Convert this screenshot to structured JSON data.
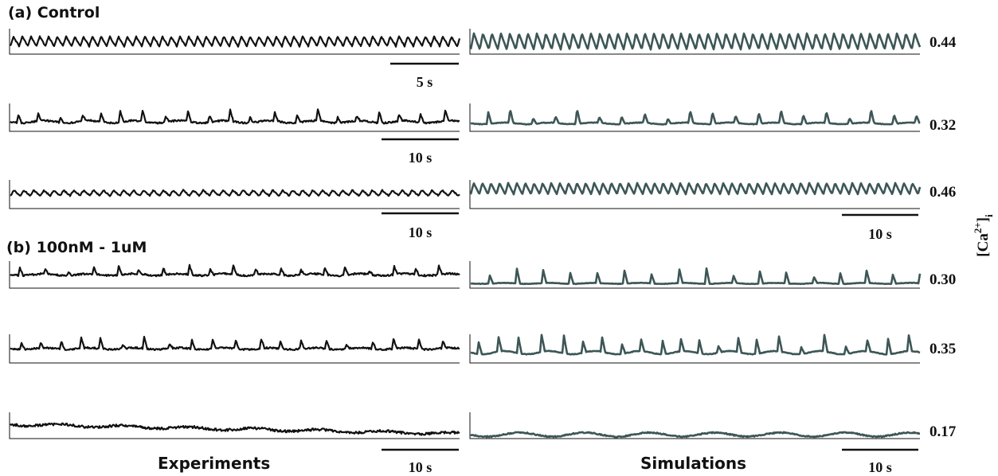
{
  "sections": {
    "a": "(a) Control",
    "b": "(b) 100nM - 1uM"
  },
  "columns": {
    "left": "Experiments",
    "right": "Simulations"
  },
  "y_axis_label": {
    "base": "[Ca",
    "sup": "2+",
    "close": "]",
    "sub": "i"
  },
  "chart_data": [
    {
      "type": "line",
      "panel": "a",
      "row": 1,
      "experiment": {
        "pattern": "regular oscillation, ~51 peaks",
        "scale_bar": "5 s"
      },
      "simulation": {
        "pattern": "regular oscillation, ~50 peaks",
        "amplitude_value": "0.44"
      }
    },
    {
      "type": "line",
      "panel": "a",
      "row": 2,
      "experiment": {
        "pattern": "irregular spikes, ~26 peaks",
        "scale_bar": "10 s"
      },
      "simulation": {
        "pattern": "regular spikes, ~26 peaks",
        "amplitude_value": "0.32"
      }
    },
    {
      "type": "line",
      "panel": "a",
      "row": 3,
      "experiment": {
        "pattern": "small regular oscillation, ~45 peaks",
        "scale_bar": "10 s"
      },
      "simulation": {
        "pattern": "regular oscillation, ~52 peaks",
        "amplitude_value": "0.46",
        "scale_bar": "10 s"
      }
    },
    {
      "type": "line",
      "panel": "b",
      "row": 1,
      "experiment": {
        "pattern": "irregular spikes, ~24 peaks"
      },
      "simulation": {
        "pattern": "regular spikes, ~20 peaks",
        "amplitude_value": "0.30"
      }
    },
    {
      "type": "line",
      "panel": "b",
      "row": 2,
      "experiment": {
        "pattern": "irregular spikes, ~24 peaks"
      },
      "simulation": {
        "pattern": "irregular spikes, ~28 peaks",
        "amplitude_value": "0.35"
      }
    },
    {
      "type": "line",
      "panel": "b",
      "row": 3,
      "experiment": {
        "pattern": "noisy, decaying",
        "scale_bar": "10 s"
      },
      "simulation": {
        "pattern": "noisy, low amplitude",
        "amplitude_value": "0.17",
        "scale_bar": "10 s"
      }
    }
  ],
  "colors": {
    "experiment": "#111111",
    "simulation": "#3d5656"
  }
}
